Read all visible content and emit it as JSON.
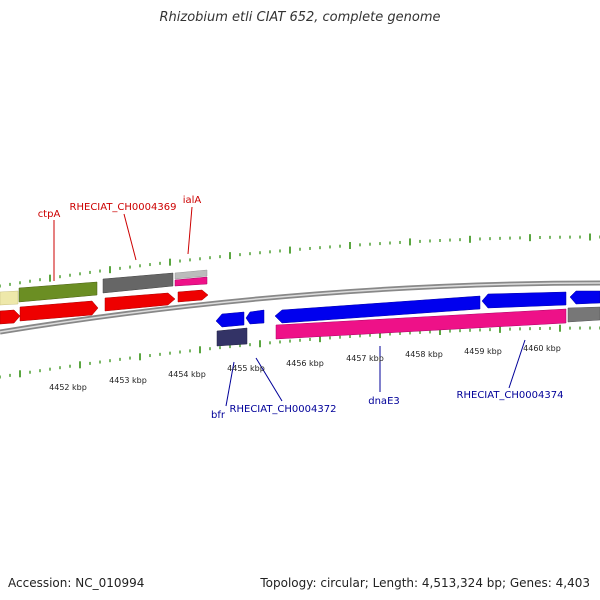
{
  "title": "Rhizobium etli CIAT 652, complete genome",
  "footer": {
    "accession": "Accession: NC_010994",
    "topology": "Topology: circular; Length: 4,513,324 bp; Genes: 4,403"
  },
  "colors": {
    "upper_label": "#cc0000",
    "lower_label": "#000099",
    "tick": "#228800",
    "backbone": "#888888",
    "red_gene": "#ff0000",
    "blue_gene": "#0000ee",
    "magenta_gene": "#ee1188",
    "grey_gene": "#777777",
    "olive_gene": "#6b8e23",
    "cream_gene": "#eee8aa",
    "dark_navy": "#333366"
  },
  "scale_labels": [
    "4452 kbp",
    "4453 kbp",
    "4454 kbp",
    "4455 kbp",
    "4456 kbp",
    "4457 kbp",
    "4458 kbp",
    "4459 kbp",
    "4460 kbp"
  ],
  "upper_labels": [
    "ctpA",
    "RHECIAT_CH0004369",
    "ialA"
  ],
  "lower_labels": [
    "bfr",
    "RHECIAT_CH0004372",
    "dnaE3",
    "RHECIAT_CH0004374"
  ]
}
